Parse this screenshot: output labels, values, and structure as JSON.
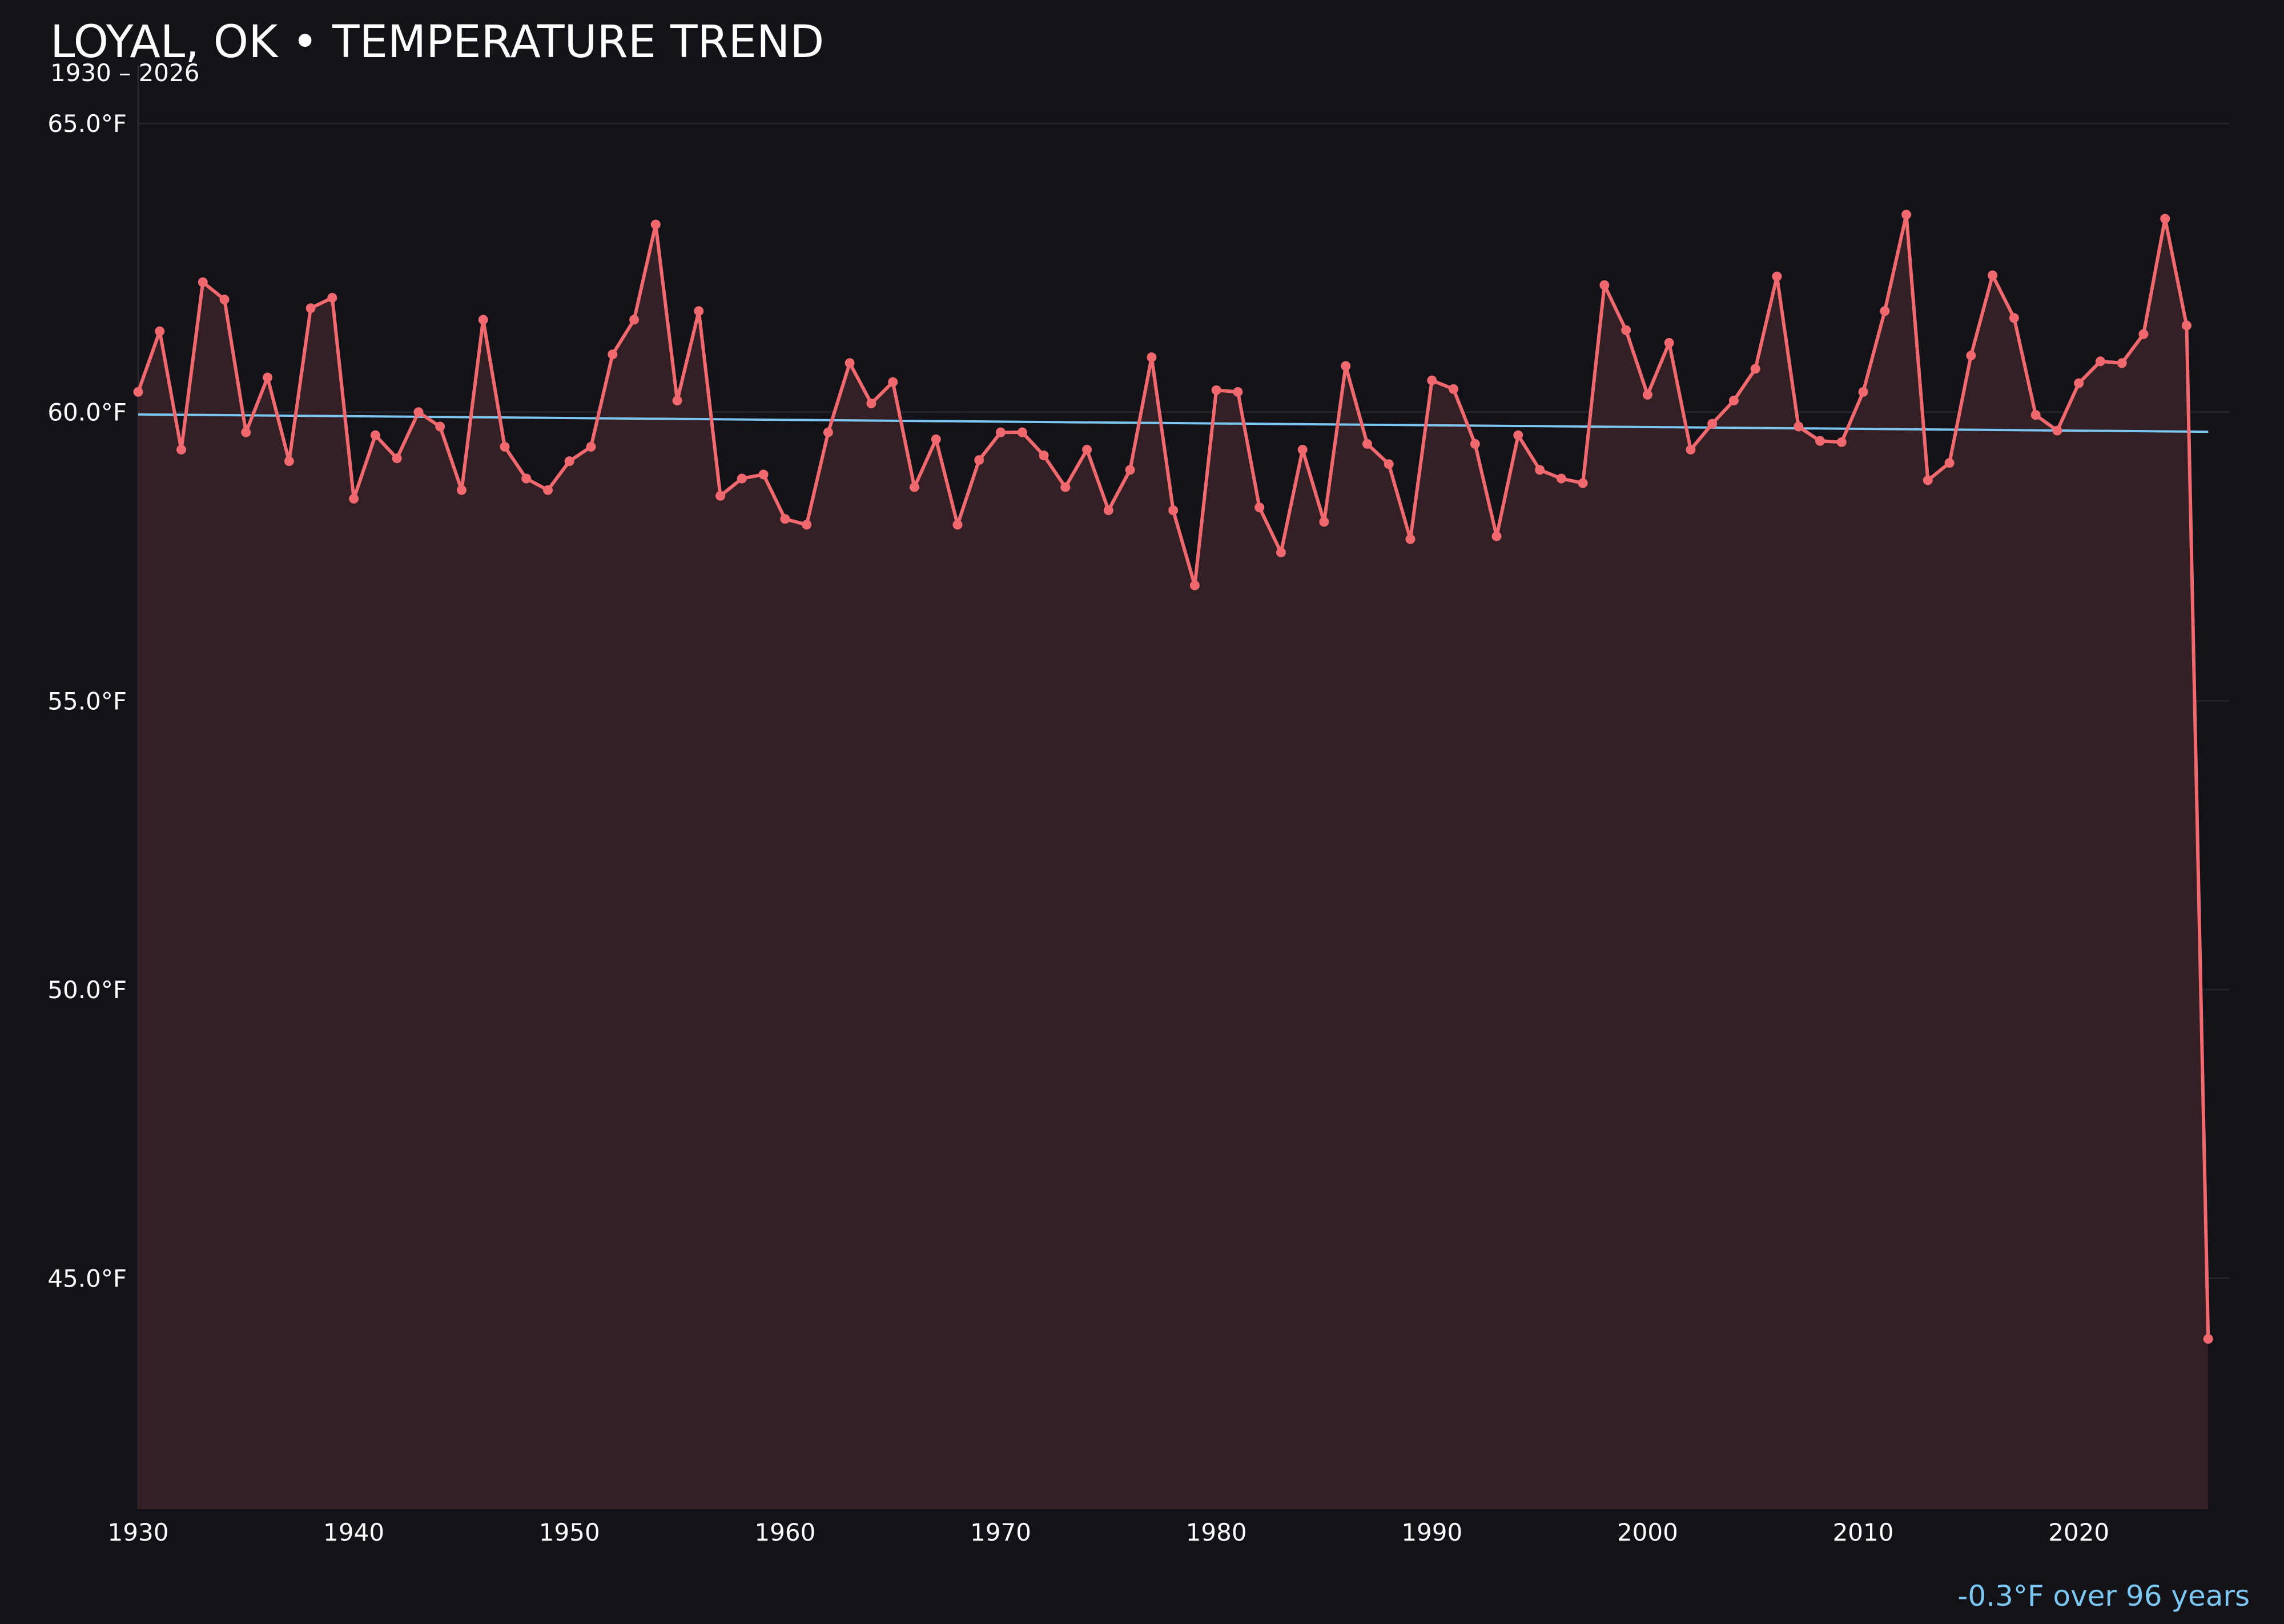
{
  "chart_data": {
    "type": "line",
    "title": "LOYAL, OK • TEMPERATURE TREND",
    "subtitle": "1930 – 2026",
    "annotation": "-0.3°F over 96 years",
    "xlim": [
      1930,
      2027
    ],
    "ylim": [
      41,
      66
    ],
    "x_ticks": [
      1930,
      1940,
      1950,
      1960,
      1970,
      1980,
      1990,
      2000,
      2010,
      2020
    ],
    "x_tick_labels": [
      "1930",
      "1940",
      "1950",
      "1960",
      "1970",
      "1980",
      "1990",
      "2000",
      "2010",
      "2020"
    ],
    "y_ticks": [
      45,
      50,
      55,
      60,
      65
    ],
    "y_tick_labels": [
      "45.0°F",
      "50.0°F",
      "55.0°F",
      "60.0°F",
      "65.0°F"
    ],
    "grid": true,
    "colors": {
      "background": "#131218",
      "line": "#f0696e",
      "fill": "#341f25",
      "trend": "#7cc6f2",
      "grid": "#24232a",
      "text": "#ffffff"
    },
    "series": [
      {
        "x": [
          1930,
          1931,
          1932,
          1933,
          1934,
          1935,
          1936,
          1937,
          1938,
          1939,
          1940,
          1941,
          1942,
          1943,
          1944,
          1945,
          1946,
          1947,
          1948,
          1949,
          1950,
          1951,
          1952,
          1953,
          1954,
          1955,
          1956,
          1957,
          1958,
          1959,
          1960,
          1961,
          1962,
          1963,
          1964,
          1965,
          1966,
          1967,
          1968,
          1969,
          1970,
          1971,
          1972,
          1973,
          1974,
          1975,
          1976,
          1977,
          1978,
          1979,
          1980,
          1981,
          1982,
          1983,
          1984,
          1985,
          1986,
          1987,
          1988,
          1989,
          1990,
          1991,
          1992,
          1993,
          1994,
          1995,
          1996,
          1997,
          1998,
          1999,
          2000,
          2001,
          2002,
          2003,
          2004,
          2005,
          2006,
          2007,
          2008,
          2009,
          2010,
          2011,
          2012,
          2013,
          2014,
          2015,
          2016,
          2017,
          2018,
          2019,
          2020,
          2021,
          2022,
          2023,
          2024,
          2025,
          2026
        ],
        "values": [
          60.35,
          61.4,
          59.35,
          62.25,
          61.95,
          59.65,
          60.6,
          59.15,
          61.8,
          61.98,
          58.5,
          59.6,
          59.2,
          60.0,
          59.75,
          58.65,
          61.6,
          59.4,
          58.85,
          58.65,
          59.15,
          59.4,
          61.0,
          61.6,
          63.25,
          60.2,
          61.75,
          58.55,
          58.85,
          58.92,
          58.15,
          58.05,
          59.65,
          60.85,
          60.15,
          60.52,
          58.7,
          59.53,
          58.05,
          59.17,
          59.65,
          59.65,
          59.25,
          58.7,
          59.35,
          58.3,
          59.0,
          60.95,
          58.3,
          57.0,
          60.38,
          60.35,
          58.35,
          57.57,
          59.35,
          58.1,
          60.8,
          59.45,
          59.1,
          57.8,
          60.55,
          60.4,
          59.45,
          57.85,
          59.6,
          59.0,
          58.85,
          58.77,
          62.2,
          61.42,
          60.3,
          61.2,
          59.35,
          59.8,
          60.2,
          60.75,
          62.35,
          59.75,
          59.5,
          59.48,
          60.35,
          61.75,
          63.42,
          58.82,
          59.12,
          60.98,
          62.37,
          61.63,
          59.95,
          59.68,
          60.5,
          60.88,
          60.85,
          61.35,
          63.35,
          61.5,
          43.95
        ]
      }
    ],
    "trend": {
      "x": [
        1930,
        2026
      ],
      "y": [
        59.96,
        59.66
      ]
    }
  }
}
